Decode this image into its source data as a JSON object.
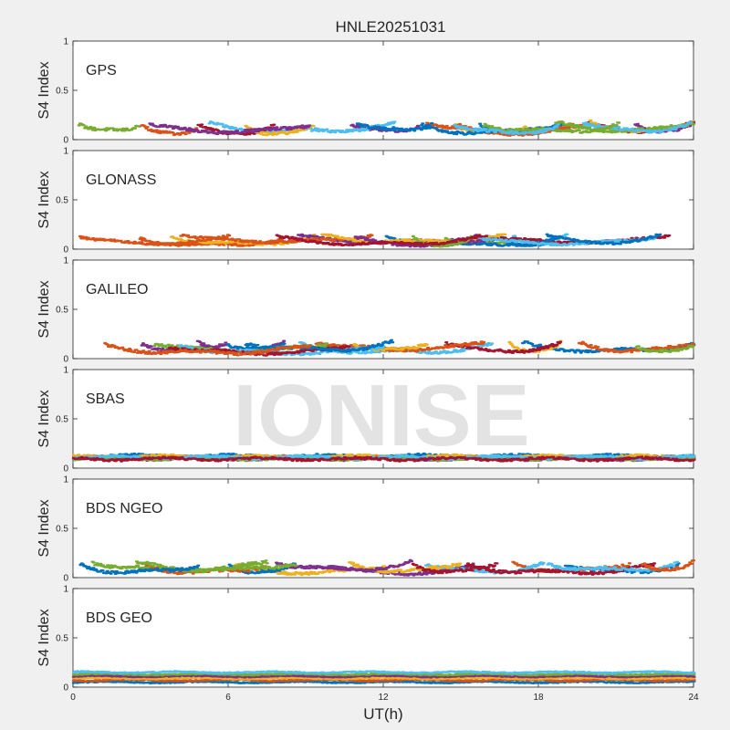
{
  "title": "HNLE20251031",
  "watermark": "IONISE",
  "xlabel": "UT(h)",
  "ylabel": "S4 Index",
  "colors": {
    "series": [
      "#0072BD",
      "#D95319",
      "#EDB120",
      "#7E2F8E",
      "#77AC30",
      "#4DBEEE",
      "#A2142F"
    ],
    "background": "#f0f0f0",
    "axes": "#ffffff",
    "watermark": "#e3e3e3"
  },
  "chart_data": [
    {
      "type": "scatter",
      "label": "GPS",
      "xlim": [
        0,
        24
      ],
      "ylim": [
        0,
        1
      ],
      "xticks": [
        0,
        6,
        12,
        18,
        24
      ],
      "yticks": [
        0,
        0.5,
        1
      ],
      "ytick_labels": [
        "0",
        "0.5",
        "1"
      ],
      "base": 0.08,
      "amp": 0.05,
      "peak": 0.24,
      "sats": 20
    },
    {
      "type": "scatter",
      "label": "GLONASS",
      "xlim": [
        0,
        24
      ],
      "ylim": [
        0,
        1
      ],
      "xticks": [
        0,
        6,
        12,
        18,
        24
      ],
      "yticks": [
        0,
        0.5,
        1
      ],
      "ytick_labels": [
        "0",
        "0.5",
        "1"
      ],
      "base": 0.06,
      "amp": 0.04,
      "peak": 0.15,
      "sats": 16
    },
    {
      "type": "scatter",
      "label": "GALILEO",
      "xlim": [
        0,
        24
      ],
      "ylim": [
        0,
        1
      ],
      "xticks": [
        0,
        6,
        12,
        18,
        24
      ],
      "yticks": [
        0,
        0.5,
        1
      ],
      "ytick_labels": [
        "0",
        "0.5",
        "1"
      ],
      "base": 0.08,
      "amp": 0.05,
      "peak": 0.22,
      "sats": 16
    },
    {
      "type": "scatter",
      "label": "SBAS",
      "xlim": [
        0,
        24
      ],
      "ylim": [
        0,
        1
      ],
      "xticks": [
        0,
        6,
        12,
        18,
        24
      ],
      "yticks": [
        0,
        0.5,
        1
      ],
      "ytick_labels": [
        "0",
        "0.5",
        "1"
      ],
      "base": 0.11,
      "amp": 0.04,
      "peak": 0.18,
      "sats": 7,
      "continuous": true
    },
    {
      "type": "scatter",
      "label": "BDS NGEO",
      "xlim": [
        0,
        24
      ],
      "ylim": [
        0,
        1
      ],
      "xticks": [
        0,
        6,
        12,
        18,
        24
      ],
      "yticks": [
        0,
        0.5,
        1
      ],
      "ytick_labels": [
        "0",
        "0.5",
        "1"
      ],
      "base": 0.07,
      "amp": 0.05,
      "peak": 0.18,
      "sats": 16
    },
    {
      "type": "scatter",
      "label": "BDS GEO",
      "xlim": [
        0,
        24
      ],
      "ylim": [
        0,
        1
      ],
      "xticks": [
        0,
        6,
        12,
        18,
        24
      ],
      "yticks": [
        0,
        0.5,
        1
      ],
      "ytick_labels": [
        "0",
        "0.5",
        "1"
      ],
      "xtick_labels": [
        "0",
        "6",
        "12",
        "18",
        "24"
      ],
      "base": 0.1,
      "amp": 0.02,
      "peak": 0.17,
      "sats": 6,
      "continuous": true,
      "levels": [
        0.05,
        0.07,
        0.09,
        0.11,
        0.13,
        0.15
      ]
    }
  ]
}
